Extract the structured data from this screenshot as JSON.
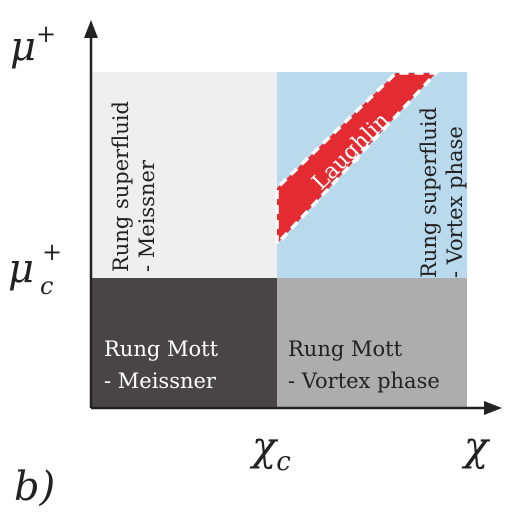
{
  "panel_label": "b)",
  "axes": {
    "y_label": "μ",
    "y_label_sup": "+",
    "y_tick_label": "μ",
    "y_tick_sub": "c",
    "y_tick_sup": "+",
    "x_label": "χ",
    "x_tick_label": "χ",
    "x_tick_sub": "c"
  },
  "regions": {
    "top_left": {
      "line1": "Rung superfluid",
      "line2": "- Meissner",
      "fill": "#efefef"
    },
    "top_right": {
      "line1": "Rung superfluid",
      "line2": "- Vortex phase",
      "fill": "#b9d9ec"
    },
    "bottom_left": {
      "line1": "Rung Mott",
      "line2": "- Meissner",
      "fill": "#494546"
    },
    "bottom_right": {
      "line1": "Rung Mott",
      "line2": "- Vortex phase",
      "fill": "#adadad"
    },
    "laughlin": {
      "label": "Laughlin",
      "fill": "#e42b32"
    }
  },
  "colors": {
    "axis": "#222222",
    "dashed_outline": "#ffffff",
    "text_dark": "#222222",
    "text_light": "#ffffff"
  }
}
